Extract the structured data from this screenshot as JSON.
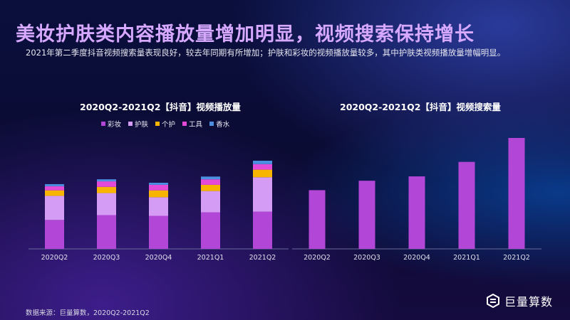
{
  "header": {
    "title": "美妆护肤类内容播放量增加明显，视频搜索保持增长",
    "subtitle": "2021年第二季度抖音视频搜索量表现良好，较去年同期有所增加；护肤和彩妆的视频播放量较多，其中护肤类视频播放量增幅明显。"
  },
  "footer": {
    "source": "数据来源：巨量算数，2020Q2-2021Q2",
    "logo_text": "巨量算数"
  },
  "colors": {
    "彩妆": "#b246d6",
    "护肤": "#d59cf5",
    "个护": "#f7b500",
    "工具": "#e34ad8",
    "香水": "#4a8fe0"
  },
  "chart_data": [
    {
      "type": "bar",
      "stacked": true,
      "title": "2020Q2-2021Q2【抖音】视频播放量",
      "categories": [
        "2020Q2",
        "2020Q3",
        "2020Q4",
        "2021Q1",
        "2021Q2"
      ],
      "legend_position": "top",
      "series": [
        {
          "name": "彩妆",
          "values": [
            42,
            49,
            48,
            53,
            54
          ]
        },
        {
          "name": "护肤",
          "values": [
            35,
            32,
            27,
            31,
            50
          ]
        },
        {
          "name": "个护",
          "values": [
            8,
            9,
            10,
            9,
            11
          ]
        },
        {
          "name": "工具",
          "values": [
            6,
            8,
            8,
            8,
            8
          ]
        },
        {
          "name": "香水",
          "values": [
            3,
            3,
            3,
            4,
            5
          ]
        }
      ],
      "ylim": [
        0,
        130
      ],
      "grid": false
    },
    {
      "type": "bar",
      "title": "2020Q2-2021Q2【抖音】视频搜索量",
      "categories": [
        "2020Q2",
        "2020Q3",
        "2020Q4",
        "2021Q1",
        "2021Q2"
      ],
      "values": [
        81,
        94,
        100,
        120,
        153
      ],
      "color": "#b246d6",
      "ylim": [
        0,
        160
      ],
      "grid": false
    }
  ]
}
